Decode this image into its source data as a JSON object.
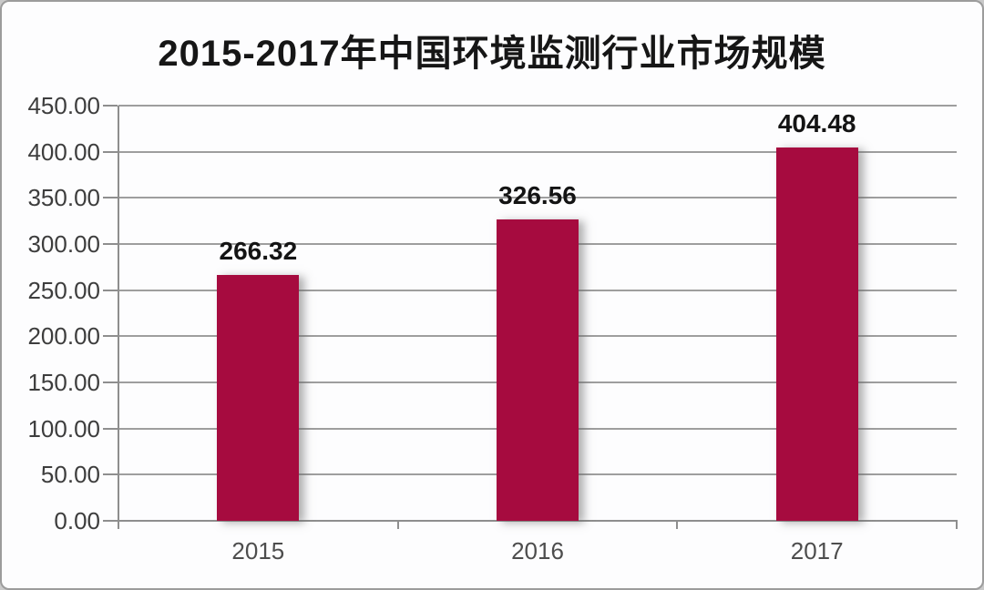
{
  "title": "2015-2017年中国环境监测行业市场规模",
  "chart_data": {
    "type": "bar",
    "title": "2015-2017年中国环境监测行业市场规模",
    "categories": [
      "2015",
      "2016",
      "2017"
    ],
    "values": [
      266.32,
      326.56,
      404.48
    ],
    "value_labels": [
      "266.32",
      "326.56",
      "404.48"
    ],
    "xlabel": "",
    "ylabel": "",
    "ylim": [
      0,
      450
    ],
    "ytick_step": 50,
    "ytick_labels": [
      "0.00",
      "50.00",
      "100.00",
      "150.00",
      "200.00",
      "250.00",
      "300.00",
      "350.00",
      "400.00",
      "450.00"
    ],
    "grid": true,
    "legend": false
  },
  "colors": {
    "bar": "#A60B3F",
    "grid": "#9E9E9E",
    "axis": "#8E8E8E",
    "title_text": "#161616",
    "tick_label_text": "#3D3D3D",
    "value_label_text": "#141414",
    "category_label_text": "#4D4D4D",
    "frame_border": "#9C9C9C",
    "background": "#FDFDFE"
  }
}
